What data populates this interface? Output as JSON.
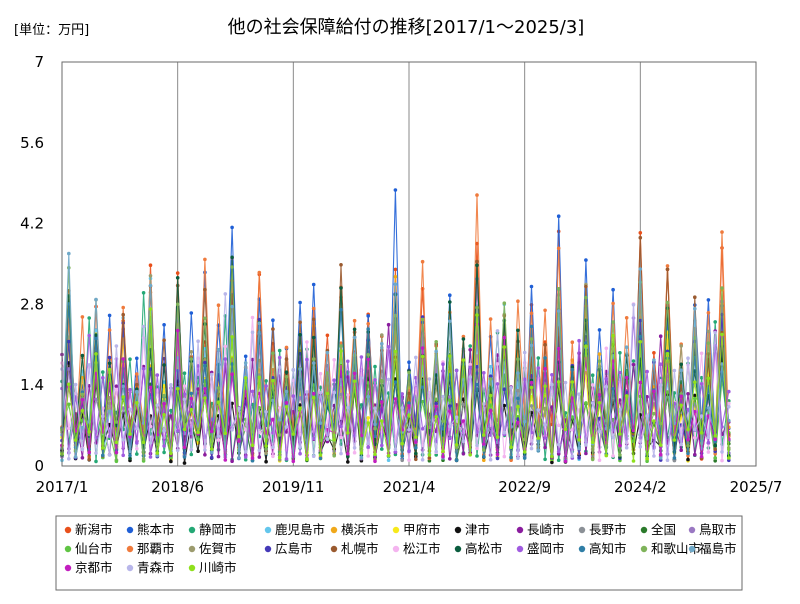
{
  "chart_data": {
    "type": "line",
    "title": "他の社会保障給付の推移[2017/1～2025/3]",
    "unit_label": "[単位：万円]",
    "ylim": [
      0,
      7
    ],
    "y_ticks": [
      "0",
      "1.4",
      "2.8",
      "4.2",
      "5.6",
      "7"
    ],
    "x_ticks": [
      "2017/1",
      "2018/6",
      "2019/11",
      "2021/4",
      "2022/9",
      "2024/2",
      "2025/7"
    ],
    "grid": "vertical",
    "legend_position": "bottom",
    "series": [
      {
        "name": "新潟市",
        "color": "#e8501b",
        "amp": 3.6,
        "base": 0.45,
        "off": 0
      },
      {
        "name": "熊本市",
        "color": "#1f5fd6",
        "amp": 4.3,
        "base": 0.5,
        "off": 0
      },
      {
        "name": "静岡市",
        "color": "#24a875",
        "amp": 2.6,
        "base": 0.4,
        "off": 1
      },
      {
        "name": "鹿児島市",
        "color": "#63c6ec",
        "amp": 2.9,
        "base": 0.45,
        "off": 0
      },
      {
        "name": "横浜市",
        "color": "#f0a81a",
        "amp": 3.0,
        "base": 0.45,
        "off": 0
      },
      {
        "name": "甲府市",
        "color": "#f7e91b",
        "amp": 2.4,
        "base": 0.4,
        "off": 0
      },
      {
        "name": "津市",
        "color": "#111111",
        "amp": 1.9,
        "base": 0.25,
        "off": 0
      },
      {
        "name": "長崎市",
        "color": "#8a1c9e",
        "amp": 2.2,
        "base": 0.4,
        "off": 1
      },
      {
        "name": "長野市",
        "color": "#8b9096",
        "amp": 2.6,
        "base": 0.45,
        "off": 0
      },
      {
        "name": "全国",
        "color": "#2b7a2b",
        "amp": 2.4,
        "base": 0.45,
        "off": 0
      },
      {
        "name": "鳥取市",
        "color": "#9a78c2",
        "amp": 3.0,
        "base": 0.5,
        "off": 0
      },
      {
        "name": "仙台市",
        "color": "#5fc443",
        "amp": 2.1,
        "base": 0.4,
        "off": 0
      },
      {
        "name": "那覇市",
        "color": "#ef7a3c",
        "amp": 4.4,
        "base": 0.5,
        "off": 0
      },
      {
        "name": "佐賀市",
        "color": "#9c9b6e",
        "amp": 3.4,
        "base": 0.5,
        "off": 0
      },
      {
        "name": "広島市",
        "color": "#4439b8",
        "amp": 2.9,
        "base": 0.45,
        "off": 0
      },
      {
        "name": "札幌市",
        "color": "#9a5a2f",
        "amp": 3.8,
        "base": 0.45,
        "off": 0
      },
      {
        "name": "松江市",
        "color": "#f4b4ef",
        "amp": 2.6,
        "base": 0.45,
        "off": 1
      },
      {
        "name": "高松市",
        "color": "#0a5c3e",
        "amp": 3.5,
        "base": 0.45,
        "off": 0
      },
      {
        "name": "盛岡市",
        "color": "#a05be0",
        "amp": 2.5,
        "base": 0.45,
        "off": 1
      },
      {
        "name": "高知市",
        "color": "#2f7ea6",
        "amp": 2.8,
        "base": 0.45,
        "off": 0
      },
      {
        "name": "和歌山市",
        "color": "#7fb35a",
        "amp": 3.2,
        "base": 0.5,
        "off": 0
      },
      {
        "name": "福島市",
        "color": "#6fa9c9",
        "amp": 3.2,
        "base": 0.5,
        "off": 0
      },
      {
        "name": "京都市",
        "color": "#c21ebf",
        "amp": 2.3,
        "base": 0.4,
        "off": 0
      },
      {
        "name": "青森市",
        "color": "#b8b6ea",
        "amp": 2.5,
        "base": 0.45,
        "off": 1
      },
      {
        "name": "川崎市",
        "color": "#8fe01c",
        "amp": 2.4,
        "base": 0.4,
        "off": 0
      }
    ]
  }
}
